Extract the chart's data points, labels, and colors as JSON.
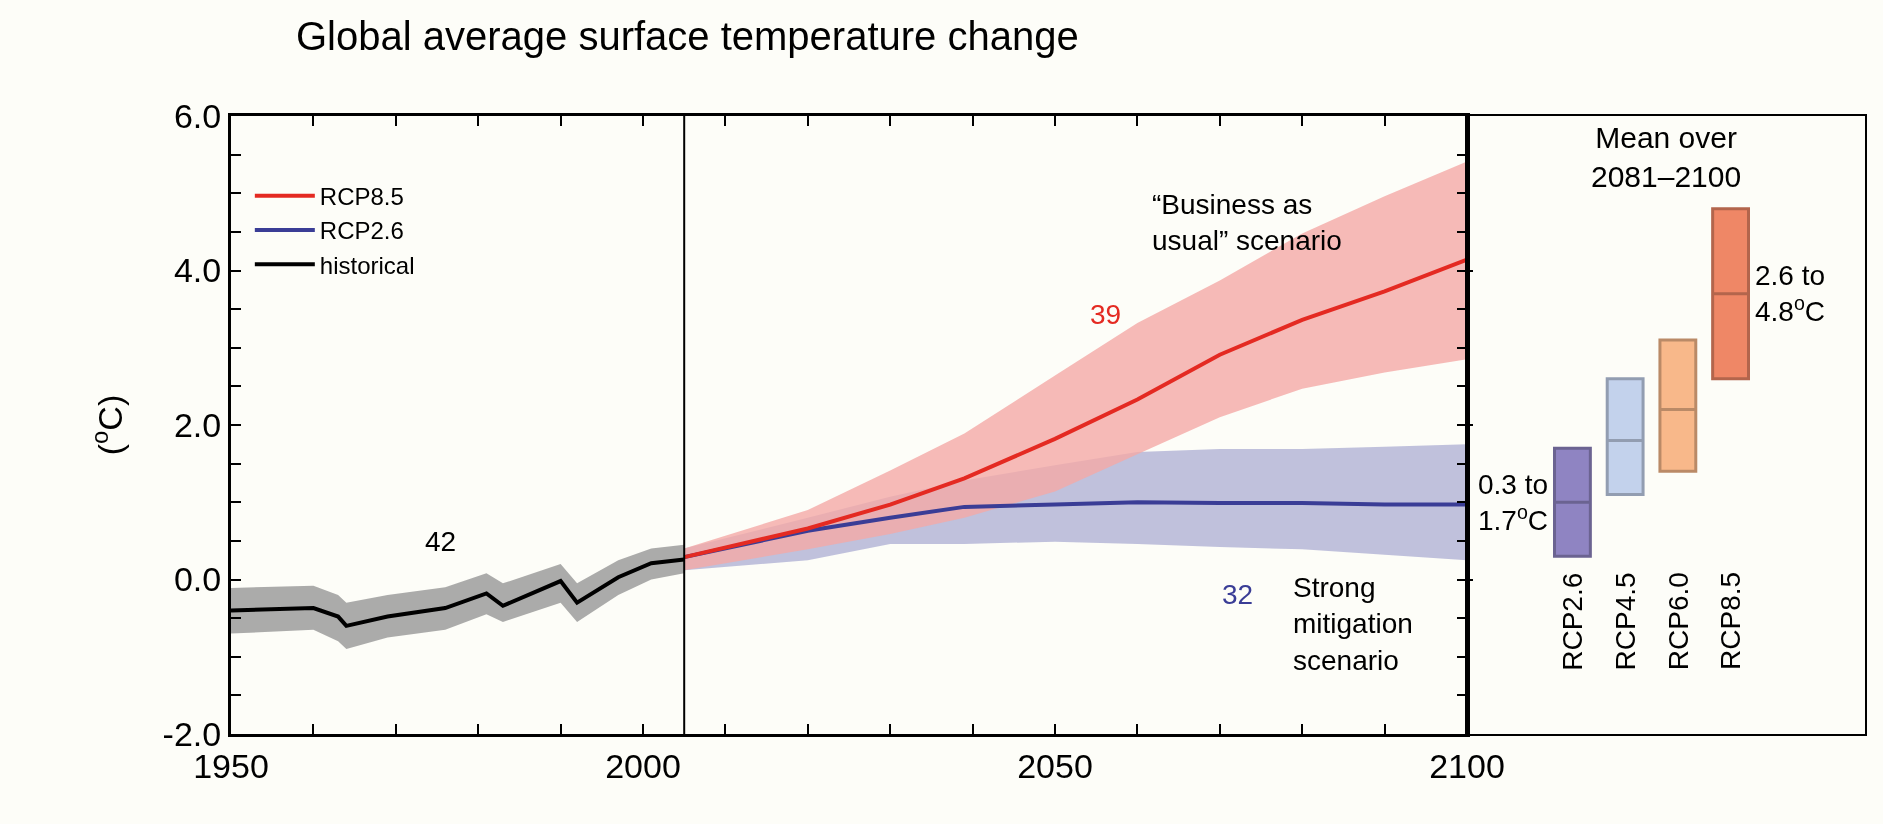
{
  "chart_data": [
    {
      "type": "line",
      "title": "Global average surface temperature change",
      "ylabel": "($^{o}$C)",
      "xlim": [
        1950,
        2100
      ],
      "xticks": [
        1950,
        {
          "value": 1960,
          "label": null
        },
        {
          "value": 1970,
          "label": null
        },
        {
          "value": 1980,
          "label": null
        },
        {
          "value": 1990,
          "label": null
        },
        2000,
        {
          "value": 2010,
          "label": null
        },
        {
          "value": 2020,
          "label": null
        },
        {
          "value": 2030,
          "label": null
        },
        {
          "value": 2040,
          "label": null
        },
        2050,
        {
          "value": 2060,
          "label": null
        },
        {
          "value": 2070,
          "label": null
        },
        {
          "value": 2080,
          "label": null
        },
        {
          "value": 2090,
          "label": null
        },
        2100
      ],
      "ylim": [
        -2,
        6
      ],
      "yticks": [
        {
          "value": -2,
          "label": "-2.0"
        },
        {
          "value": -1.5,
          "label": null
        },
        {
          "value": -1,
          "label": null
        },
        {
          "value": -0.5,
          "label": null
        },
        {
          "value": 0,
          "label": "0.0"
        },
        {
          "value": 0.5,
          "label": null
        },
        {
          "value": 1,
          "label": null
        },
        {
          "value": 1.5,
          "label": null
        },
        {
          "value": 2,
          "label": "2.0"
        },
        {
          "value": 2.5,
          "label": null
        },
        {
          "value": 3,
          "label": null
        },
        {
          "value": 3.5,
          "label": null
        },
        {
          "value": 4,
          "label": "4.0"
        },
        {
          "value": 4.5,
          "label": null
        },
        {
          "value": 5,
          "label": null
        },
        {
          "value": 5.5,
          "label": null
        },
        {
          "value": 6,
          "label": "6.0"
        }
      ],
      "grid": false,
      "legend": "top left",
      "marker": "none",
      "line_style": "solid",
      "series": [
        {
          "name": "historical",
          "color": "#000000",
          "x": [
            1950,
            1960,
            1963,
            1964,
            1969,
            1976,
            1981,
            1983,
            1990,
            1992,
            1997,
            2001,
            2005
          ],
          "values": [
            -0.4,
            -0.37,
            -0.48,
            -0.6,
            -0.48,
            -0.37,
            -0.18,
            -0.34,
            -0.02,
            -0.3,
            0.03,
            0.21,
            0.26
          ],
          "lower": [
            -0.7,
            -0.65,
            -0.8,
            -0.9,
            -0.75,
            -0.65,
            -0.45,
            -0.55,
            -0.3,
            -0.55,
            -0.2,
            0.0,
            0.08
          ],
          "upper": [
            -0.11,
            -0.08,
            -0.2,
            -0.3,
            -0.2,
            -0.1,
            0.08,
            -0.05,
            0.2,
            -0.05,
            0.25,
            0.4,
            0.45
          ]
        },
        {
          "name": "RCP2.6",
          "color": "#3a3d96",
          "x": [
            2005,
            2020,
            2030,
            2039,
            2050,
            2060,
            2070,
            2080,
            2090,
            2100
          ],
          "values": [
            0.29,
            0.63,
            0.8,
            0.94,
            0.97,
            1.0,
            0.99,
            0.99,
            0.97,
            0.97
          ],
          "lower": [
            0.12,
            0.25,
            0.46,
            0.46,
            0.49,
            0.46,
            0.42,
            0.39,
            0.32,
            0.25
          ],
          "upper": [
            0.4,
            0.8,
            1.07,
            1.28,
            1.48,
            1.65,
            1.69,
            1.69,
            1.72,
            1.75
          ]
        },
        {
          "name": "RCP8.5",
          "color": "#e42a22",
          "x": [
            2005,
            2020,
            2030,
            2039,
            2050,
            2060,
            2070,
            2080,
            2090,
            2100
          ],
          "values": [
            0.29,
            0.66,
            0.97,
            1.31,
            1.82,
            2.33,
            2.91,
            3.36,
            3.73,
            4.14
          ],
          "lower": [
            0.12,
            0.39,
            0.59,
            0.8,
            1.14,
            1.62,
            2.1,
            2.47,
            2.68,
            2.85
          ],
          "upper": [
            0.4,
            0.9,
            1.41,
            1.89,
            2.64,
            3.32,
            3.87,
            4.48,
            4.96,
            5.41
          ]
        }
      ],
      "ref_lines": [
        {
          "axis": "x",
          "value": 2005,
          "color": "#000000"
        }
      ],
      "annotations": [
        "42",
        "39",
        "32",
        "“Business as\nusual” scenario",
        "Strong\nmitigation\nscenario"
      ]
    },
    {
      "type": "box",
      "title": "Mean over\n2081–2100",
      "categories": [
        "RCP2.6",
        "RCP4.5",
        "RCP6.0",
        "RCP8.5"
      ],
      "ylim": [
        -2,
        6
      ],
      "yticks": [
        {
          "value": -2,
          "label": null
        },
        {
          "value": 0,
          "label": null
        },
        {
          "value": 2,
          "label": null
        },
        {
          "value": 4,
          "label": null
        },
        {
          "value": 6,
          "label": null
        }
      ],
      "tick_labels": false,
      "colors": [
        "#8f84c2",
        "#c3d2ec",
        "#f8b88a",
        "#ef8766"
      ],
      "boxes": [
        {
          "low": 0.3,
          "q1": 0.3,
          "median": 1.0,
          "q3": 1.7,
          "high": 1.7
        },
        {
          "low": 1.1,
          "q1": 1.1,
          "median": 1.8,
          "q3": 2.6,
          "high": 2.6
        },
        {
          "low": 1.4,
          "q1": 1.4,
          "median": 2.2,
          "q3": 3.1,
          "high": 3.1
        },
        {
          "low": 2.6,
          "q1": 2.6,
          "median": 3.7,
          "q3": 4.8,
          "high": 4.8
        }
      ],
      "annotations": [
        "0.3 to\n1.7$^{o}$C",
        "2.6 to\n4.8$^{o}$C"
      ]
    }
  ]
}
